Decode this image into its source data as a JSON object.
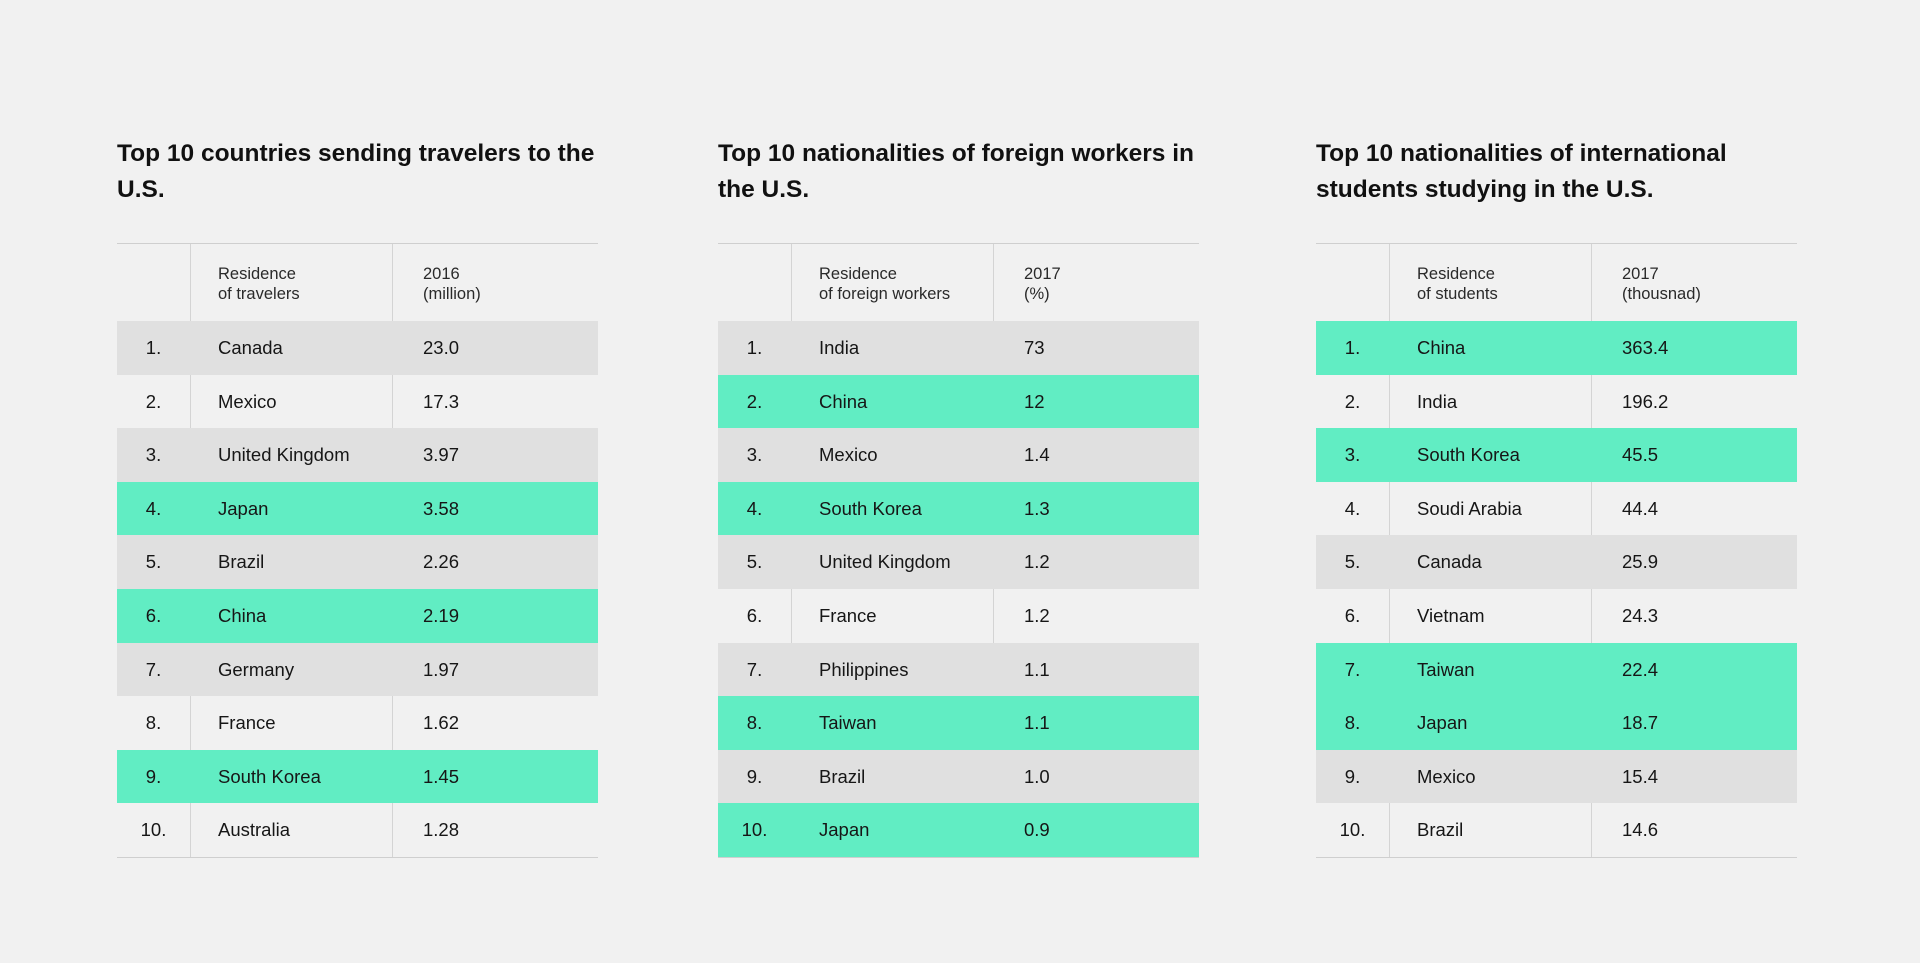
{
  "chart_data": [
    {
      "type": "table",
      "title": "Top 10 countries sending travelers to the U.S.",
      "columns": [
        "",
        "Residence\nof travelers",
        "2016\n(million)"
      ],
      "rows": [
        {
          "rank": "1.",
          "name": "Canada",
          "value": "23.0",
          "highlight": false
        },
        {
          "rank": "2.",
          "name": "Mexico",
          "value": "17.3",
          "highlight": false
        },
        {
          "rank": "3.",
          "name": "United Kingdom",
          "value": "3.97",
          "highlight": false
        },
        {
          "rank": "4.",
          "name": "Japan",
          "value": "3.58",
          "highlight": true
        },
        {
          "rank": "5.",
          "name": "Brazil",
          "value": "2.26",
          "highlight": false
        },
        {
          "rank": "6.",
          "name": "China",
          "value": "2.19",
          "highlight": true
        },
        {
          "rank": "7.",
          "name": "Germany",
          "value": "1.97",
          "highlight": false
        },
        {
          "rank": "8.",
          "name": "France",
          "value": "1.62",
          "highlight": false
        },
        {
          "rank": "9.",
          "name": "South Korea",
          "value": "1.45",
          "highlight": true
        },
        {
          "rank": "10.",
          "name": "Australia",
          "value": "1.28",
          "highlight": false
        }
      ]
    },
    {
      "type": "table",
      "title": "Top 10 nationalities of foreign workers in the U.S.",
      "columns": [
        "",
        "Residence\nof foreign workers",
        "2017\n(%)"
      ],
      "rows": [
        {
          "rank": "1.",
          "name": "India",
          "value": "73",
          "highlight": false
        },
        {
          "rank": "2.",
          "name": "China",
          "value": "12",
          "highlight": true
        },
        {
          "rank": "3.",
          "name": "Mexico",
          "value": "1.4",
          "highlight": false
        },
        {
          "rank": "4.",
          "name": "South Korea",
          "value": "1.3",
          "highlight": true
        },
        {
          "rank": "5.",
          "name": "United Kingdom",
          "value": "1.2",
          "highlight": false
        },
        {
          "rank": "6.",
          "name": "France",
          "value": "1.2",
          "highlight": false
        },
        {
          "rank": "7.",
          "name": "Philippines",
          "value": "1.1",
          "highlight": false
        },
        {
          "rank": "8.",
          "name": "Taiwan",
          "value": "1.1",
          "highlight": true
        },
        {
          "rank": "9.",
          "name": "Brazil",
          "value": "1.0",
          "highlight": false
        },
        {
          "rank": "10.",
          "name": "Japan",
          "value": "0.9",
          "highlight": true
        }
      ]
    },
    {
      "type": "table",
      "title": "Top 10 nationalities of international students studying in the U.S.",
      "columns": [
        "",
        "Residence\nof students",
        "2017\n(thousnad)"
      ],
      "rows": [
        {
          "rank": "1.",
          "name": "China",
          "value": "363.4",
          "highlight": true
        },
        {
          "rank": "2.",
          "name": "India",
          "value": "196.2",
          "highlight": false
        },
        {
          "rank": "3.",
          "name": "South Korea",
          "value": "45.5",
          "highlight": true
        },
        {
          "rank": "4.",
          "name": "Soudi Arabia",
          "value": "44.4",
          "highlight": false
        },
        {
          "rank": "5.",
          "name": "Canada",
          "value": "25.9",
          "highlight": false
        },
        {
          "rank": "6.",
          "name": "Vietnam",
          "value": "24.3",
          "highlight": false
        },
        {
          "rank": "7.",
          "name": "Taiwan",
          "value": "22.4",
          "highlight": true
        },
        {
          "rank": "8.",
          "name": "Japan",
          "value": "18.7",
          "highlight": true
        },
        {
          "rank": "9.",
          "name": "Mexico",
          "value": "15.4",
          "highlight": false
        },
        {
          "rank": "10.",
          "name": "Brazil",
          "value": "14.6",
          "highlight": false
        }
      ]
    }
  ],
  "colors": {
    "background": "#f1f1f1",
    "highlight": "#61edc3",
    "row_gray": "#e0e0e0"
  }
}
